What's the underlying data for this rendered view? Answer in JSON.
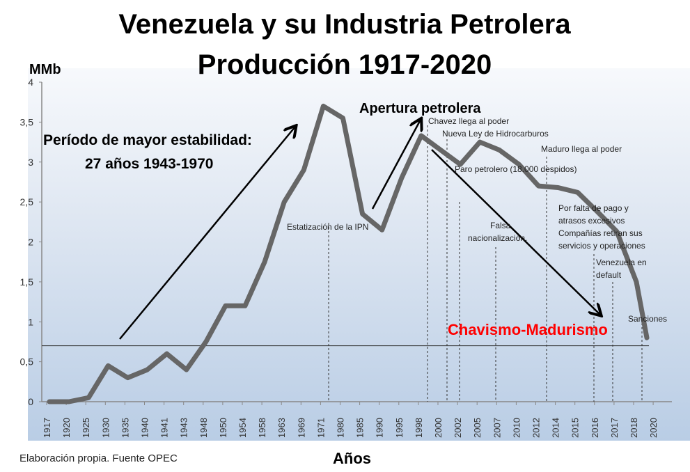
{
  "chart_data": {
    "type": "line",
    "title": "Venezuela y su Industria Petrolera",
    "subtitle": "Producción 1917-2020",
    "ylabel": "MMb",
    "xlabel": "Años",
    "ylim": [
      0,
      4
    ],
    "yticks": [
      "0",
      "0,5",
      "1",
      "1,5",
      "2",
      "2,5",
      "3",
      "3,5",
      "4"
    ],
    "categories": [
      "1917",
      "1920",
      "1925",
      "1930",
      "1935",
      "1940",
      "1941",
      "1943",
      "1948",
      "1950",
      "1954",
      "1958",
      "1963",
      "1969",
      "1971",
      "1980",
      "1985",
      "1990",
      "1995",
      "1998",
      "2000",
      "2002",
      "2005",
      "2007",
      "2010",
      "2012",
      "2014",
      "2015",
      "2016",
      "2017",
      "2018",
      "2020"
    ],
    "values": [
      0,
      0,
      0.05,
      0.45,
      0.3,
      0.4,
      0.6,
      0.4,
      0.75,
      1.2,
      1.2,
      1.75,
      2.5,
      2.9,
      3.7,
      3.55,
      2.35,
      2.15,
      2.8,
      3.33,
      3.15,
      2.97,
      3.25,
      3.15,
      2.97,
      2.7,
      2.68,
      2.62,
      2.38,
      2.13,
      1.5,
      0.8
    ],
    "reference_line": 0.7,
    "line_color": "#666666",
    "grid": false,
    "annotations": {
      "stability": [
        "Período de mayor estabilidad:",
        "27 años 1943-1970"
      ],
      "apertura": "Apertura petrolera",
      "estatizacion": "Estatización de la IPN",
      "chavez": "Chavez llega al poder",
      "ley": "Nueva Ley de Hidrocarburos",
      "paro": "Paro petrolero (18.000 despidos)",
      "falsa": [
        "Falsa",
        "nacionalización."
      ],
      "maduro": "Maduro llega al poder",
      "falta": [
        "Por falta de pago y",
        "atrasos excesivos",
        "Compañías retiran sus",
        "servicios y operaciones"
      ],
      "default": [
        "Venezuela en",
        "default"
      ],
      "sanciones": "Sanciones",
      "chavismo": "Chavismo-Madurismo"
    },
    "highlight_color": "#ff0000"
  },
  "footer": "Elaboración propia. Fuente OPEC"
}
